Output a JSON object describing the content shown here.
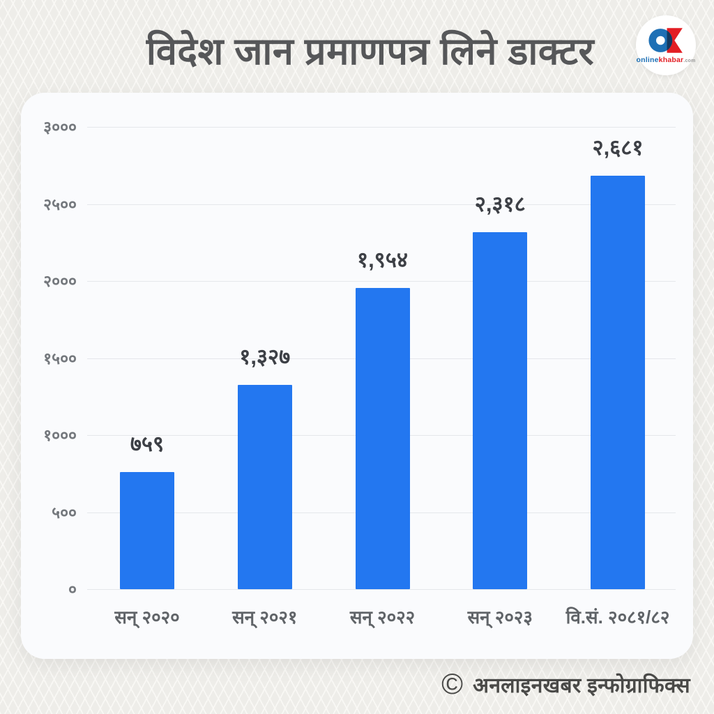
{
  "title": "विदेश जान प्रमाणपत्र लिने डाक्टर",
  "logo": {
    "name": "onlinekhabar",
    "online": "online",
    "khabar": "khabar",
    "tld": ".com"
  },
  "footer": {
    "symbol": "©",
    "text": "अनलाइनखबर इन्फोग्राफिक्स"
  },
  "colors": {
    "bar": "#2377f0",
    "card_background": "#fafbfd",
    "page_background": "#eeede9",
    "title_text": "#565759",
    "value_label_text": "#3d4046",
    "axis_label_text": "#606468",
    "gridline": "#e5e7eb",
    "logo_blue": "#1e70b5",
    "logo_red": "#e31e24",
    "logo_dark": "#14395f"
  },
  "chart_data": {
    "type": "bar",
    "title": "विदेश जान प्रमाणपत्र लिने डाक्टर",
    "categories": [
      "सन् २०२०",
      "सन् २०२१",
      "सन् २०२२",
      "सन् २०२३",
      "वि.सं. २०८१/८२"
    ],
    "values": [
      759,
      1327,
      1954,
      2318,
      2681
    ],
    "value_labels": [
      "७५९",
      "१,३२७",
      "१,९५४",
      "२,३१८",
      "२,६८१"
    ],
    "xlabel": "",
    "ylabel": "",
    "ylim": [
      0,
      3000
    ],
    "y_ticks": [
      {
        "value": 0,
        "label": "०"
      },
      {
        "value": 500,
        "label": "५००"
      },
      {
        "value": 1000,
        "label": "१०००"
      },
      {
        "value": 1500,
        "label": "१५००"
      },
      {
        "value": 2000,
        "label": "२०००"
      },
      {
        "value": 2500,
        "label": "२५००"
      },
      {
        "value": 3000,
        "label": "३०००"
      }
    ],
    "grid": "horizontal",
    "legend": "none"
  }
}
